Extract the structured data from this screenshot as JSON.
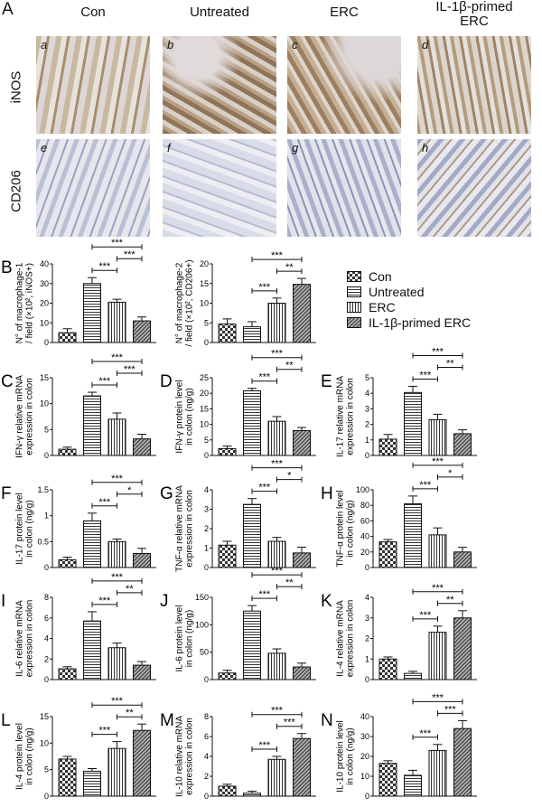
{
  "panel_a": {
    "letter": "A",
    "columns": [
      "Con",
      "Untreated",
      "ERC",
      "IL-1β-primed ERC"
    ],
    "rows": [
      "iNOS",
      "CD206"
    ],
    "image_labels": [
      "a",
      "b",
      "c",
      "d",
      "e",
      "f",
      "g",
      "h"
    ]
  },
  "legend": {
    "items": [
      {
        "label": "Con",
        "pattern": "checker"
      },
      {
        "label": "Untreated",
        "pattern": "horizontal"
      },
      {
        "label": "ERC",
        "pattern": "vertical"
      },
      {
        "label": "IL-1β-primed ERC",
        "pattern": "diagonal"
      }
    ]
  },
  "chart_data": [
    {
      "id": "B1",
      "letter": "B",
      "type": "bar",
      "ylabel": [
        "N° of macrophage-1",
        "/ field (×10², iNOS+)"
      ],
      "ylim": [
        0,
        40
      ],
      "ticks": [
        0,
        10,
        20,
        30,
        40
      ],
      "categories": [
        "Con",
        "Untreated",
        "ERC",
        "IL-1β-primed ERC"
      ],
      "values": [
        5,
        30,
        20.5,
        11
      ],
      "errors": [
        2,
        3,
        1.5,
        2
      ],
      "significance": [
        {
          "from": 1,
          "to": 2,
          "label": "***"
        },
        {
          "from": 2,
          "to": 3,
          "label": "***"
        },
        {
          "from": 1,
          "to": 3,
          "label": "***"
        }
      ]
    },
    {
      "id": "B2",
      "letter": "",
      "type": "bar",
      "ylabel": [
        "N° of macrophage-2",
        "/ field (×10², CD206+)"
      ],
      "ylim": [
        0,
        20
      ],
      "ticks": [
        0,
        5,
        10,
        15,
        20
      ],
      "categories": [
        "Con",
        "Untreated",
        "ERC",
        "IL-1β-primed ERC"
      ],
      "values": [
        4.7,
        4,
        10,
        14.8
      ],
      "errors": [
        1.3,
        1.3,
        1.3,
        1.5
      ],
      "significance": [
        {
          "from": 1,
          "to": 2,
          "label": "***"
        },
        {
          "from": 2,
          "to": 3,
          "label": "**"
        },
        {
          "from": 1,
          "to": 3,
          "label": "***"
        }
      ]
    },
    {
      "id": "C",
      "letter": "C",
      "type": "bar",
      "ylabel": [
        "IFN-γ relative mRNA",
        "expression in colon"
      ],
      "ylim": [
        0,
        15
      ],
      "ticks": [
        0,
        5,
        10,
        15
      ],
      "categories": [
        "Con",
        "Untreated",
        "ERC",
        "IL-1β-primed ERC"
      ],
      "values": [
        1.2,
        11.5,
        7,
        3.2
      ],
      "errors": [
        0.4,
        0.7,
        1.2,
        0.9
      ],
      "significance": [
        {
          "from": 1,
          "to": 2,
          "label": "***"
        },
        {
          "from": 2,
          "to": 3,
          "label": "***"
        },
        {
          "from": 1,
          "to": 3,
          "label": "***"
        }
      ]
    },
    {
      "id": "D",
      "letter": "D",
      "type": "bar",
      "ylabel": [
        "IFN-γ protein level",
        "in colon (ng/g)"
      ],
      "ylim": [
        0,
        25
      ],
      "ticks": [
        0,
        5,
        10,
        15,
        20,
        25
      ],
      "categories": [
        "Con",
        "Untreated",
        "ERC",
        "IL-1β-primed ERC"
      ],
      "values": [
        2.2,
        20.8,
        11,
        8
      ],
      "errors": [
        0.8,
        0.8,
        1.5,
        1
      ],
      "significance": [
        {
          "from": 1,
          "to": 2,
          "label": "***"
        },
        {
          "from": 2,
          "to": 3,
          "label": "**"
        },
        {
          "from": 1,
          "to": 3,
          "label": "***"
        }
      ]
    },
    {
      "id": "E",
      "letter": "E",
      "type": "bar",
      "ylabel": [
        "IL-17 relative mRNA",
        "expression in colon"
      ],
      "ylim": [
        0,
        5
      ],
      "ticks": [
        0,
        1,
        2,
        3,
        4,
        5
      ],
      "categories": [
        "Con",
        "Untreated",
        "ERC",
        "IL-1β-primed ERC"
      ],
      "values": [
        1.05,
        4.05,
        2.3,
        1.4
      ],
      "errors": [
        0.3,
        0.4,
        0.35,
        0.25
      ],
      "significance": [
        {
          "from": 1,
          "to": 2,
          "label": "***"
        },
        {
          "from": 2,
          "to": 3,
          "label": "**"
        },
        {
          "from": 1,
          "to": 3,
          "label": "***"
        }
      ]
    },
    {
      "id": "F",
      "letter": "F",
      "type": "bar",
      "ylabel": [
        "IL-17 protein level",
        "in colon (ng/g)"
      ],
      "ylim": [
        0,
        1.5
      ],
      "ticks": [
        0,
        0.5,
        1.0,
        1.5
      ],
      "categories": [
        "Con",
        "Untreated",
        "ERC",
        "IL-1β-primed ERC"
      ],
      "values": [
        0.15,
        0.9,
        0.5,
        0.27
      ],
      "errors": [
        0.05,
        0.15,
        0.05,
        0.1
      ],
      "significance": [
        {
          "from": 1,
          "to": 2,
          "label": "***"
        },
        {
          "from": 2,
          "to": 3,
          "label": "*"
        },
        {
          "from": 1,
          "to": 3,
          "label": "***"
        }
      ]
    },
    {
      "id": "G",
      "letter": "G",
      "type": "bar",
      "ylabel": [
        "TNF-α relative mRNA",
        "expression in colon"
      ],
      "ylim": [
        0,
        4
      ],
      "ticks": [
        0,
        1,
        2,
        3,
        4
      ],
      "categories": [
        "Con",
        "Untreated",
        "ERC",
        "IL-1β-primed ERC"
      ],
      "values": [
        1.15,
        3.25,
        1.35,
        0.75
      ],
      "errors": [
        0.2,
        0.3,
        0.2,
        0.3
      ],
      "significance": [
        {
          "from": 1,
          "to": 2,
          "label": "***"
        },
        {
          "from": 2,
          "to": 3,
          "label": "*"
        },
        {
          "from": 1,
          "to": 3,
          "label": "***"
        }
      ]
    },
    {
      "id": "H",
      "letter": "H",
      "type": "bar",
      "ylabel": [
        "TNF-α protein level",
        "in colon (ng/g)"
      ],
      "ylim": [
        0,
        100
      ],
      "ticks": [
        0,
        20,
        40,
        60,
        80,
        100
      ],
      "categories": [
        "Con",
        "Untreated",
        "ERC",
        "IL-1β-primed ERC"
      ],
      "values": [
        33,
        82,
        42,
        20
      ],
      "errors": [
        3,
        10,
        9,
        6
      ],
      "significance": [
        {
          "from": 1,
          "to": 2,
          "label": "***"
        },
        {
          "from": 2,
          "to": 3,
          "label": "*"
        },
        {
          "from": 1,
          "to": 3,
          "label": "***"
        }
      ]
    },
    {
      "id": "I",
      "letter": "I",
      "type": "bar",
      "ylabel": [
        "IL-6 relative mRNA",
        "expression in colon"
      ],
      "ylim": [
        0,
        8
      ],
      "ticks": [
        0,
        2,
        4,
        6,
        8
      ],
      "categories": [
        "Con",
        "Untreated",
        "ERC",
        "IL-1β-primed ERC"
      ],
      "values": [
        1.05,
        5.7,
        3.1,
        1.4
      ],
      "errors": [
        0.2,
        0.9,
        0.45,
        0.35
      ],
      "significance": [
        {
          "from": 1,
          "to": 2,
          "label": "***"
        },
        {
          "from": 2,
          "to": 3,
          "label": "**"
        },
        {
          "from": 1,
          "to": 3,
          "label": "***"
        }
      ]
    },
    {
      "id": "J",
      "letter": "J",
      "type": "bar",
      "ylabel": [
        "IL-6 protein level",
        "in colon (ng/g)"
      ],
      "ylim": [
        0,
        150
      ],
      "ticks": [
        0,
        50,
        100,
        150
      ],
      "categories": [
        "Con",
        "Untreated",
        "ERC",
        "IL-1β-primed ERC"
      ],
      "values": [
        12,
        125,
        48,
        23
      ],
      "errors": [
        5,
        10,
        8,
        7
      ],
      "significance": [
        {
          "from": 1,
          "to": 2,
          "label": "***"
        },
        {
          "from": 2,
          "to": 3,
          "label": "**"
        },
        {
          "from": 1,
          "to": 3,
          "label": "***"
        }
      ]
    },
    {
      "id": "K",
      "letter": "K",
      "type": "bar",
      "ylabel": [
        "IL-4 relative mRNA",
        "expression in colon"
      ],
      "ylim": [
        0,
        4
      ],
      "ticks": [
        0,
        1,
        2,
        3,
        4
      ],
      "categories": [
        "Con",
        "Untreated",
        "ERC",
        "IL-1β-primed ERC"
      ],
      "values": [
        1,
        0.3,
        2.3,
        3.0
      ],
      "errors": [
        0.1,
        0.1,
        0.3,
        0.35
      ],
      "significance": [
        {
          "from": 1,
          "to": 2,
          "label": "***"
        },
        {
          "from": 2,
          "to": 3,
          "label": "**"
        },
        {
          "from": 1,
          "to": 3,
          "label": "***"
        }
      ]
    },
    {
      "id": "L",
      "letter": "L",
      "type": "bar",
      "ylabel": [
        "IL-4 protein level",
        "in colon (ng/g)"
      ],
      "ylim": [
        0,
        15
      ],
      "ticks": [
        0,
        5,
        10,
        15
      ],
      "categories": [
        "Con",
        "Untreated",
        "ERC",
        "IL-1β-primed ERC"
      ],
      "values": [
        7,
        4.7,
        9,
        12.4
      ],
      "errors": [
        0.5,
        0.5,
        1.3,
        1.2
      ],
      "significance": [
        {
          "from": 1,
          "to": 2,
          "label": "***"
        },
        {
          "from": 2,
          "to": 3,
          "label": "**"
        },
        {
          "from": 1,
          "to": 3,
          "label": "***"
        }
      ]
    },
    {
      "id": "M",
      "letter": "M",
      "type": "bar",
      "ylabel": [
        "IL-10 relative mRNA",
        "expression in colon"
      ],
      "ylim": [
        0,
        8
      ],
      "ticks": [
        0,
        2,
        4,
        6,
        8
      ],
      "categories": [
        "Con",
        "Untreated",
        "ERC",
        "IL-1β-primed ERC"
      ],
      "values": [
        1,
        0.3,
        3.7,
        5.8
      ],
      "errors": [
        0.2,
        0.2,
        0.3,
        0.5
      ],
      "significance": [
        {
          "from": 1,
          "to": 2,
          "label": "***"
        },
        {
          "from": 2,
          "to": 3,
          "label": "***"
        },
        {
          "from": 1,
          "to": 3,
          "label": "***"
        }
      ]
    },
    {
      "id": "N",
      "letter": "N",
      "type": "bar",
      "ylabel": [
        "IL-10 protein level",
        "in colon (ng/g)"
      ],
      "ylim": [
        0,
        40
      ],
      "ticks": [
        0,
        10,
        20,
        30,
        40
      ],
      "categories": [
        "Con",
        "Untreated",
        "ERC",
        "IL-1β-primed ERC"
      ],
      "values": [
        16.5,
        10.5,
        23,
        34
      ],
      "errors": [
        1.3,
        2.5,
        3,
        4
      ],
      "significance": [
        {
          "from": 1,
          "to": 2,
          "label": "***"
        },
        {
          "from": 2,
          "to": 3,
          "label": "***"
        },
        {
          "from": 1,
          "to": 3,
          "label": "***"
        }
      ]
    }
  ]
}
